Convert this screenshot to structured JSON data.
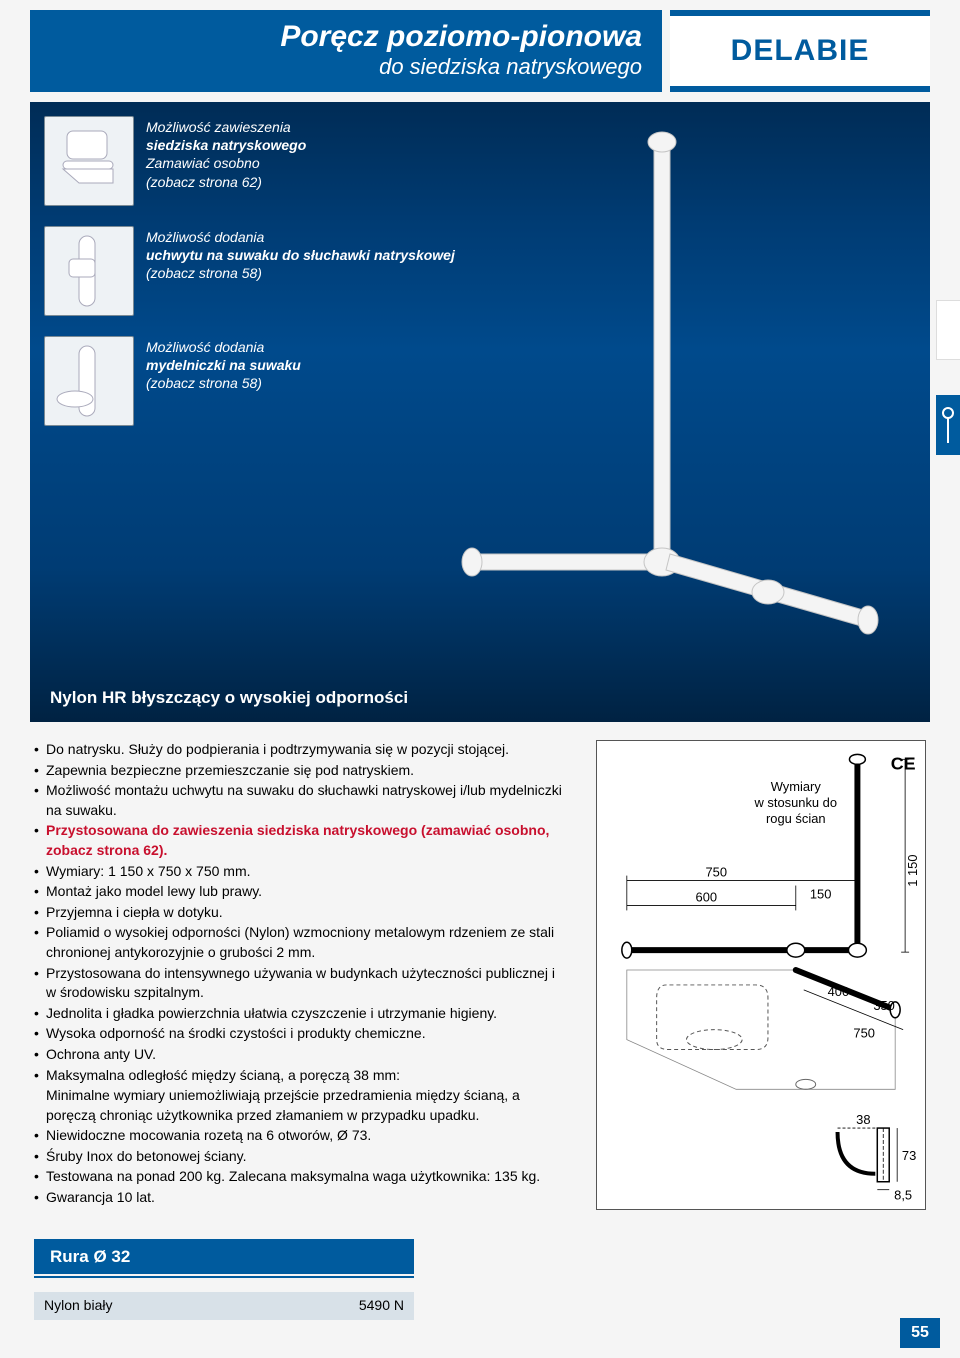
{
  "header": {
    "title_main": "Poręcz poziomo-pionowa",
    "title_sub": "do siedziska natryskowego",
    "brand": "DELABIE"
  },
  "callouts": [
    {
      "l1": "Możliwość zawieszenia",
      "l2": "siedziska natryskowego",
      "l3": "Zamawiać osobno",
      "l4": "(zobacz strona 62)"
    },
    {
      "l1": "Możliwość dodania",
      "l2": "uchwytu na suwaku do słuchawki natryskowej",
      "l3": "",
      "l4": "(zobacz strona 58)"
    },
    {
      "l1": "Możliwość dodania",
      "l2": "mydelniczki na suwaku",
      "l3": "",
      "l4": "(zobacz strona 58)"
    }
  ],
  "hero_subtitle": "Nylon HR błyszczący o wysokiej odporności",
  "bullets": [
    {
      "text": "Do natrysku. Służy do podpierania i podtrzymywania się w pozycji stojącej.",
      "emph": false,
      "cont": false
    },
    {
      "text": "Zapewnia bezpieczne przemieszczanie się pod natryskiem.",
      "emph": false,
      "cont": false
    },
    {
      "text": "Możliwość montażu uchwytu na suwaku do słuchawki natryskowej i/lub mydelniczki na suwaku.",
      "emph": false,
      "cont": false
    },
    {
      "text": "Przystosowana do zawieszenia siedziska natryskowego (zamawiać osobno, zobacz strona 62).",
      "emph": true,
      "cont": false
    },
    {
      "text": "Wymiary: 1 150 x 750 x 750 mm.",
      "emph": false,
      "cont": false
    },
    {
      "text": "Montaż jako model lewy lub prawy.",
      "emph": false,
      "cont": false
    },
    {
      "text": "Przyjemna i ciepła w dotyku.",
      "emph": false,
      "cont": false
    },
    {
      "text": "Poliamid o wysokiej odporności (Nylon) wzmocniony metalowym rdzeniem ze stali chronionej antykorozyjnie o grubości 2 mm.",
      "emph": false,
      "cont": false
    },
    {
      "text": "Przystosowana do intensywnego używania w budynkach użyteczności publicznej i w środowisku szpitalnym.",
      "emph": false,
      "cont": false
    },
    {
      "text": "Jednolita i gładka powierzchnia ułatwia czyszczenie i utrzymanie higieny.",
      "emph": false,
      "cont": false
    },
    {
      "text": "Wysoka odporność na środki czystości i produkty chemiczne.",
      "emph": false,
      "cont": false
    },
    {
      "text": "Ochrona anty UV.",
      "emph": false,
      "cont": false
    },
    {
      "text": "Maksymalna odległość między ścianą, a poręczą 38 mm:",
      "emph": false,
      "cont": false
    },
    {
      "text": "Minimalne wymiary uniemożliwiają przejście przedramienia między ścianą, a poręczą chroniąc użytkownika przed złamaniem w przypadku upadku.",
      "emph": false,
      "cont": true
    },
    {
      "text": "Niewidoczne mocowania rozetą na 6 otworów, Ø 73.",
      "emph": false,
      "cont": false
    },
    {
      "text": "Śruby Inox do betonowej ściany.",
      "emph": false,
      "cont": false
    },
    {
      "text": "Testowana na ponad 200 kg. Zalecana maksymalna waga użytkownika: 135 kg.",
      "emph": false,
      "cont": false
    },
    {
      "text": "Gwarancja 10 lat.",
      "emph": false,
      "cont": false
    }
  ],
  "diagram": {
    "caption_l1": "Wymiary",
    "caption_l2": "w stosunku do",
    "caption_l3": "rogu ścian",
    "dim_750a": "750",
    "dim_600": "600",
    "dim_150": "150",
    "dim_400": "400",
    "dim_350": "350",
    "dim_750b": "750",
    "dim_1150": "1 150",
    "dim_38": "38",
    "dim_73": "73",
    "dim_85": "8,5",
    "ce": "CE"
  },
  "spec": {
    "header": "Rura Ø 32",
    "row_label": "Nylon biały",
    "row_code": "5490 N"
  },
  "page_number": "55",
  "colors": {
    "blue": "#005b9e",
    "darkblue_top": "#002c56",
    "darkblue_mid": "#004a8c",
    "red": "#c8102e",
    "rowbg": "#d8e1e8"
  }
}
